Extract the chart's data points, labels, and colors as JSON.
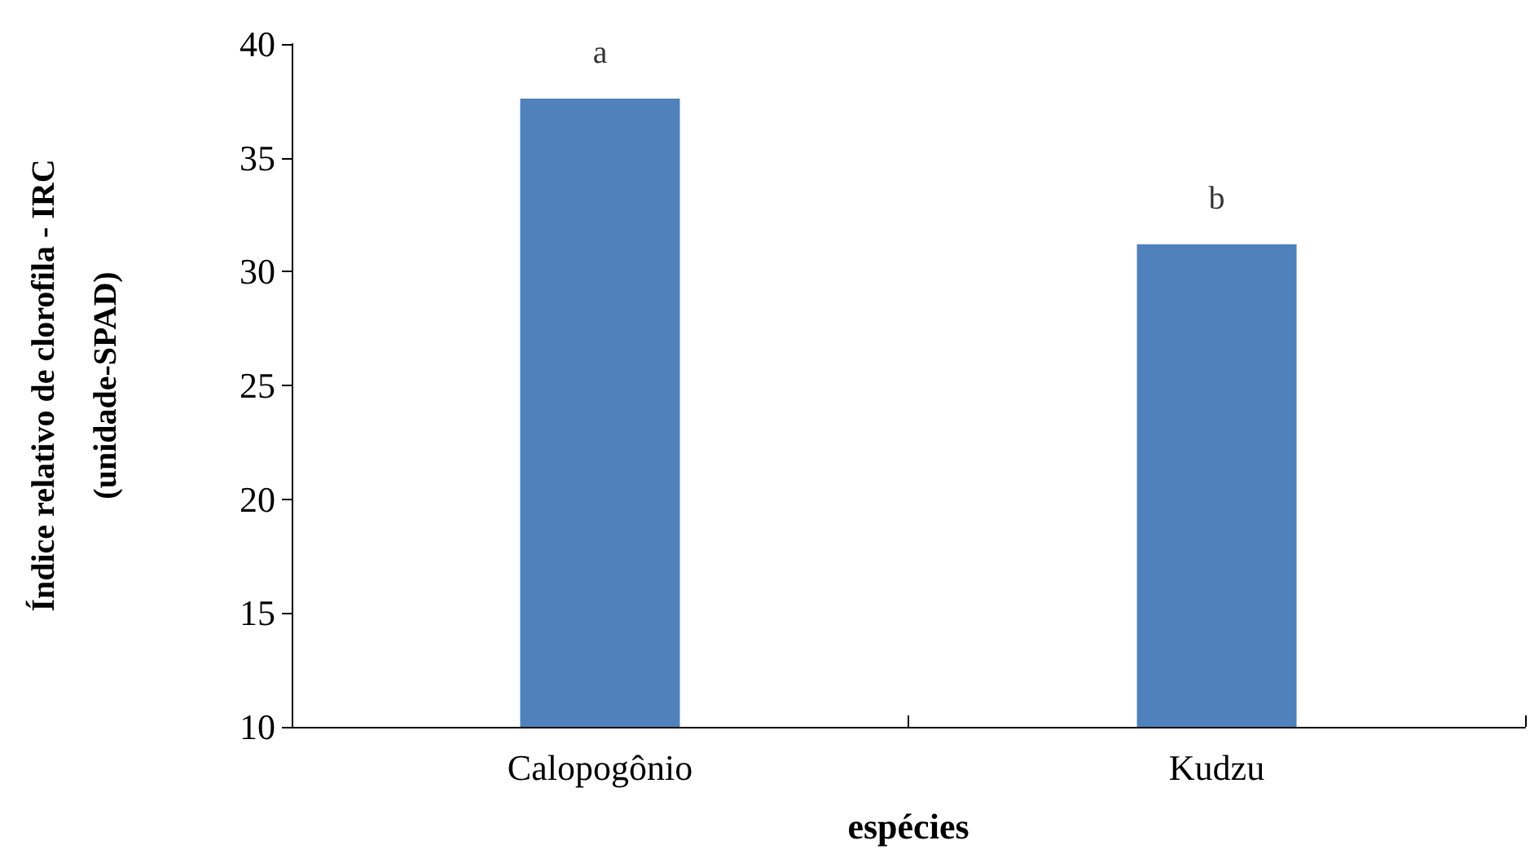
{
  "chart_data": {
    "type": "bar",
    "xlabel": "espécies",
    "ylabel": "Índice relativo de clorofila - IRC\n(unidade-SPAD)",
    "categories": [
      "Calopogônio",
      "Kudzu"
    ],
    "values": [
      37.6,
      31.2
    ],
    "color": "#4f81bd",
    "ylim": [
      10,
      40
    ],
    "yticks": [
      10,
      15,
      20,
      25,
      30,
      35,
      40
    ],
    "grid": false,
    "annotations": [
      {
        "text": "a",
        "x": "Calopogônio",
        "y": 37.6
      },
      {
        "text": "b",
        "x": "Kudzu",
        "y": 31.2
      }
    ]
  }
}
